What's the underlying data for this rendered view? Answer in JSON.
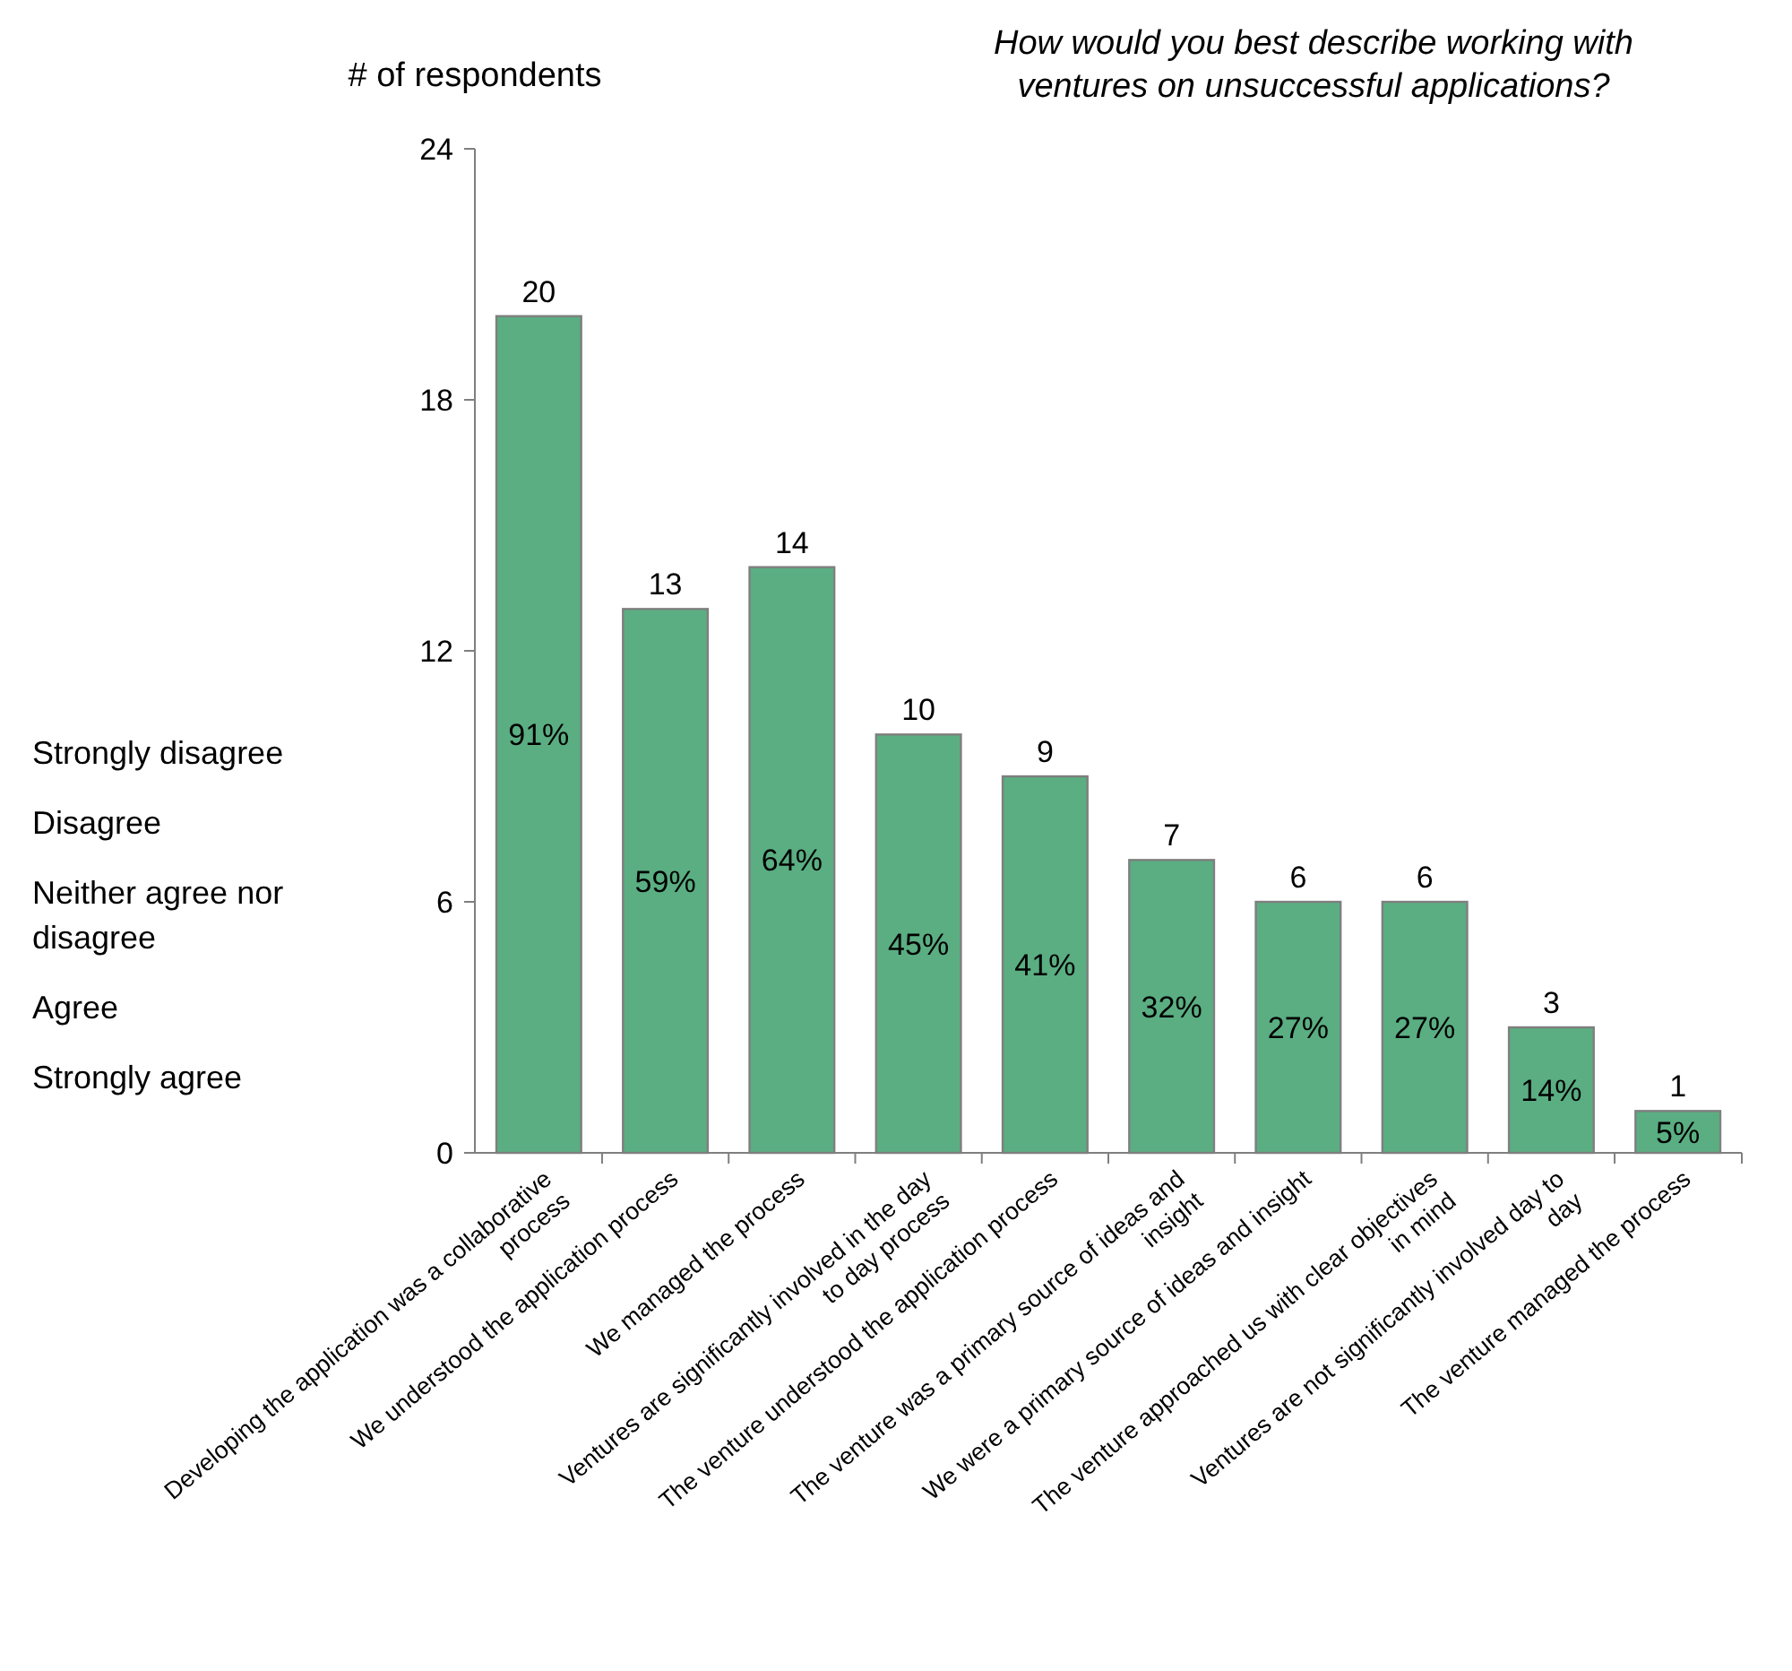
{
  "chart_data": {
    "type": "bar",
    "title": "How would you best describe working with ventures on unsuccessful applications?",
    "ylabel": "# of respondents",
    "categories": [
      "Developing the application was a collaborative process",
      "We understood the application process",
      "We managed the process",
      "Ventures are significantly involved in the day to day process",
      "The venture understood the application process",
      "The venture was a primary source of ideas and insight",
      "We were a primary source of ideas and insight",
      "The venture approached us with clear objectives in mind",
      "Ventures are not significantly involved day to day",
      "The venture managed the process"
    ],
    "values": [
      20,
      13,
      14,
      10,
      9,
      7,
      6,
      6,
      3,
      1
    ],
    "color": "#5aae82",
    "data_labels": true,
    "ylim": [
      0,
      24
    ],
    "yticks": [
      0,
      6,
      12,
      18,
      24
    ],
    "grid": false,
    "annotations": [
      "91%",
      "59%",
      "64%",
      "45%",
      "41%",
      "32%",
      "27%",
      "27%",
      "14%",
      "5%",
      "Strongly disagree",
      "Disagree",
      "Neither agree nor disagree",
      "Agree",
      "Strongly agree"
    ]
  }
}
